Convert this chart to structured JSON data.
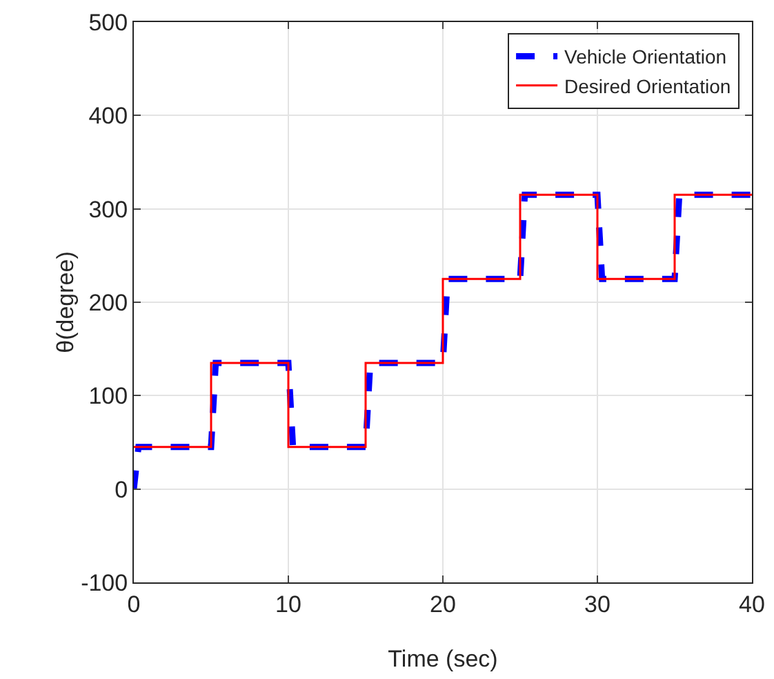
{
  "chart_data": {
    "type": "line",
    "xlabel": "Time (sec)",
    "ylabel": "θ(degree)",
    "xlim": [
      0,
      40
    ],
    "xticks": [
      0,
      10,
      20,
      30,
      40
    ],
    "ylim": [
      -100,
      500
    ],
    "yticks": [
      -100,
      0,
      100,
      200,
      300,
      400,
      500
    ],
    "grid": true,
    "legend": "top right",
    "marker": "none",
    "series": [
      {
        "name": "Vehicle Orientation",
        "color": "#0000ff",
        "line_style": "dashed",
        "x": [
          0,
          0.3,
          5,
          5.3,
          10,
          10.3,
          15,
          15.3,
          20,
          20.3,
          25,
          25.3,
          30,
          30.3,
          35,
          35.3,
          40
        ],
        "values": [
          0,
          45,
          45,
          135,
          135,
          45,
          45,
          135,
          135,
          225,
          225,
          315,
          315,
          225,
          225,
          315,
          315
        ]
      },
      {
        "name": "Desired Orientation",
        "color": "#ff0000",
        "type": "step",
        "line_style": "solid",
        "x": [
          0,
          5,
          10,
          15,
          20,
          25,
          30,
          35,
          40
        ],
        "values": [
          45,
          135,
          45,
          135,
          225,
          315,
          225,
          315,
          315
        ]
      }
    ]
  }
}
